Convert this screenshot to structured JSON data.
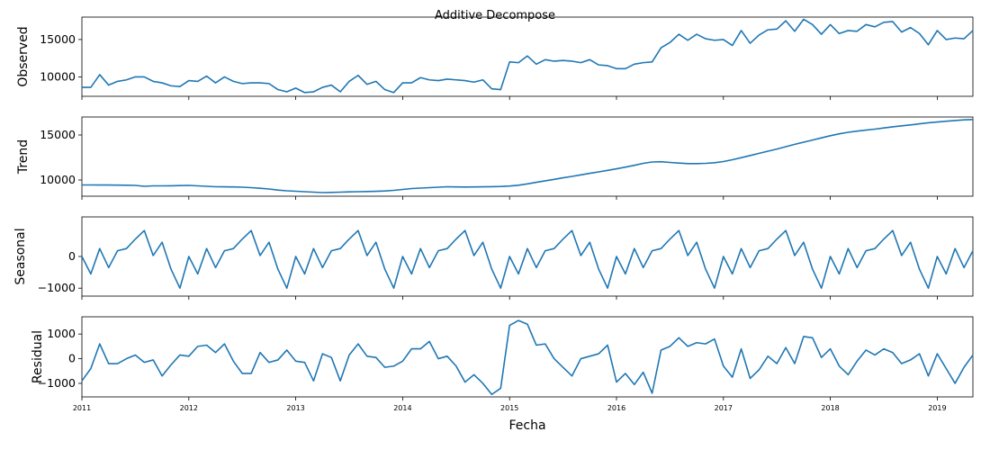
{
  "chart_data": {
    "type": "line",
    "title": "Additive Decompose",
    "xlabel": "Fecha",
    "x_range": [
      "2011-01",
      "2019-05"
    ],
    "x_tick_labels": [
      "2011",
      "2012",
      "2013",
      "2014",
      "2015",
      "2016",
      "2017",
      "2018",
      "2019"
    ],
    "line_color": "#1f77b4",
    "grid": false,
    "panels": [
      {
        "name": "observed",
        "ylabel": "Observed",
        "ylim": [
          7400,
          18000
        ],
        "y_ticks": [
          10000,
          15000
        ],
        "y_tick_labels": [
          "10000",
          "15000"
        ],
        "values": [
          8600,
          8600,
          10300,
          8900,
          9400,
          9600,
          10000,
          10000,
          9400,
          9200,
          8800,
          8700,
          9500,
          9400,
          10100,
          9200,
          10000,
          9400,
          9100,
          9200,
          9200,
          9100,
          8300,
          8000,
          8500,
          7900,
          8000,
          8600,
          8900,
          8000,
          9400,
          10200,
          9000,
          9400,
          8300,
          7900,
          9200,
          9200,
          9900,
          9600,
          9500,
          9700,
          9600,
          9500,
          9300,
          9600,
          8400,
          8300,
          12000,
          11900,
          12800,
          11700,
          12300,
          12100,
          12200,
          12100,
          11900,
          12300,
          11600,
          11500,
          11100,
          11100,
          11700,
          11900,
          12000,
          13900,
          14600,
          15700,
          14900,
          15700,
          15100,
          14900,
          15000,
          14200,
          16200,
          14500,
          15600,
          16300,
          16400,
          17500,
          16100,
          17700,
          17000,
          15700,
          17000,
          15800,
          16200,
          16100,
          17000,
          16700,
          17300,
          17400,
          16000,
          16600,
          15800,
          14300,
          16200,
          15000,
          15200,
          15100,
          16200
        ]
      },
      {
        "name": "trend",
        "ylabel": "Trend",
        "ylim": [
          8200,
          17000
        ],
        "y_ticks": [
          10000,
          15000
        ],
        "y_tick_labels": [
          "10000",
          "15000"
        ],
        "values": [
          9450,
          9450,
          9440,
          9440,
          9430,
          9420,
          9400,
          9300,
          9350,
          9350,
          9360,
          9380,
          9400,
          9350,
          9300,
          9250,
          9240,
          9230,
          9200,
          9150,
          9080,
          9000,
          8880,
          8800,
          8750,
          8700,
          8650,
          8600,
          8620,
          8650,
          8680,
          8700,
          8720,
          8740,
          8780,
          8850,
          8950,
          9050,
          9100,
          9150,
          9200,
          9250,
          9230,
          9220,
          9230,
          9240,
          9260,
          9280,
          9330,
          9420,
          9570,
          9740,
          9910,
          10070,
          10240,
          10400,
          10570,
          10740,
          10900,
          11070,
          11240,
          11430,
          11630,
          11850,
          12000,
          12030,
          11950,
          11880,
          11820,
          11820,
          11850,
          11920,
          12050,
          12250,
          12480,
          12720,
          12960,
          13200,
          13440,
          13700,
          13960,
          14200,
          14440,
          14680,
          14920,
          15130,
          15300,
          15430,
          15540,
          15650,
          15780,
          15910,
          16020,
          16120,
          16240,
          16360,
          16440,
          16530,
          16610,
          16680,
          16720
        ]
      },
      {
        "name": "seasonal",
        "ylabel": "Seasonal",
        "ylim": [
          -1250,
          1250
        ],
        "y_ticks": [
          -1000,
          0
        ],
        "y_tick_labels": [
          "−1000",
          "0"
        ],
        "period": 12,
        "values": [
          0,
          -550,
          250,
          -350,
          180,
          250,
          550,
          820,
          30,
          450,
          -400,
          -1000,
          0,
          -550,
          250,
          -350,
          180,
          250,
          550,
          820,
          30,
          450,
          -400,
          -1000,
          0,
          -550,
          250,
          -350,
          180,
          250,
          550,
          820,
          30,
          450,
          -400,
          -1000,
          0,
          -550,
          250,
          -350,
          180,
          250,
          550,
          820,
          30,
          450,
          -400,
          -1000,
          0,
          -550,
          250,
          -350,
          180,
          250,
          550,
          820,
          30,
          450,
          -400,
          -1000,
          0,
          -550,
          250,
          -350,
          180,
          250,
          550,
          820,
          30,
          450,
          -400,
          -1000,
          0,
          -550,
          250,
          -350,
          180,
          250,
          550,
          820,
          30,
          450,
          -400,
          -1000,
          0,
          -550,
          250,
          -350,
          180,
          250,
          550,
          820,
          30,
          450,
          -400,
          -1000,
          0,
          -550,
          250,
          -350,
          180
        ]
      },
      {
        "name": "residual",
        "ylabel": "Residual",
        "ylim": [
          -1550,
          1700
        ],
        "y_ticks": [
          -1000,
          0,
          1000
        ],
        "y_tick_labels": [
          "−1000",
          "0",
          "1000"
        ],
        "values": [
          -900,
          -400,
          600,
          -200,
          -200,
          0,
          150,
          -150,
          -50,
          -700,
          -250,
          150,
          100,
          500,
          550,
          250,
          600,
          -100,
          -600,
          -600,
          250,
          -150,
          -50,
          350,
          -100,
          -150,
          -900,
          200,
          50,
          -900,
          150,
          600,
          100,
          50,
          -350,
          -300,
          -100,
          400,
          400,
          700,
          0,
          100,
          -300,
          -950,
          -650,
          -1000,
          -1450,
          -1200,
          1350,
          1550,
          1400,
          550,
          600,
          0,
          -350,
          -700,
          0,
          100,
          200,
          550,
          -950,
          -600,
          -1050,
          -550,
          -1400,
          350,
          500,
          850,
          500,
          650,
          600,
          800,
          -300,
          -750,
          400,
          -800,
          -450,
          100,
          -200,
          450,
          -200,
          900,
          850,
          50,
          400,
          -300,
          -650,
          -100,
          350,
          150,
          400,
          250,
          -200,
          -50,
          200,
          -700,
          200,
          -400,
          -1000,
          -350,
          150
        ]
      }
    ]
  }
}
